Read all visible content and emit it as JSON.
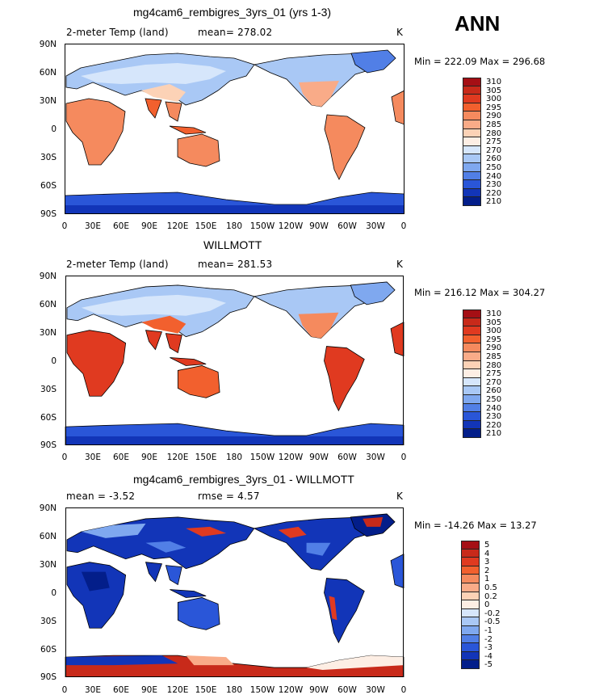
{
  "season": "ANN",
  "panels": [
    {
      "title": "mg4cam6_rembigres_3yrs_01 (yrs 1-3)",
      "left_label": "2-meter Temp (land)",
      "center_label": "mean= 278.02",
      "right_label": "K",
      "minmax": "Min = 222.09 Max = 296.68",
      "colorbar": {
        "levels": [
          "310",
          "305",
          "300",
          "295",
          "290",
          "285",
          "280",
          "275",
          "270",
          "260",
          "250",
          "240",
          "230",
          "220",
          "210"
        ],
        "colors": [
          "#a50f15",
          "#c82a1a",
          "#e03a20",
          "#f2602e",
          "#f58a5e",
          "#f9ab88",
          "#fcd2b6",
          "#fdeee4",
          "#d6e6fb",
          "#a9c8f5",
          "#7fa8ef",
          "#517fe6",
          "#2a56d8",
          "#1235b8",
          "#031e8a"
        ]
      }
    },
    {
      "title": "WILLMOTT",
      "left_label": "2-meter Temp (land)",
      "center_label": "mean= 281.53",
      "right_label": "K",
      "minmax": "Min = 216.12 Max = 304.27",
      "colorbar": {
        "levels": [
          "310",
          "305",
          "300",
          "295",
          "290",
          "285",
          "280",
          "275",
          "270",
          "260",
          "250",
          "240",
          "230",
          "220",
          "210"
        ],
        "colors": [
          "#a50f15",
          "#c82a1a",
          "#e03a20",
          "#f2602e",
          "#f58a5e",
          "#f9ab88",
          "#fcd2b6",
          "#fdeee4",
          "#d6e6fb",
          "#a9c8f5",
          "#7fa8ef",
          "#517fe6",
          "#2a56d8",
          "#1235b8",
          "#031e8a"
        ]
      }
    },
    {
      "title": "mg4cam6_rembigres_3yrs_01 - WILLMOTT",
      "left_label": "mean =   -3.52",
      "center_label": "rmse =    4.57",
      "right_label": "K",
      "minmax": "Min = -14.26 Max =  13.27",
      "colorbar": {
        "levels": [
          "5",
          "4",
          "3",
          "2",
          "1",
          "0.5",
          "0.2",
          "0",
          "-0.2",
          "-0.5",
          "-1",
          "-2",
          "-3",
          "-4",
          "-5"
        ],
        "colors": [
          "#a50f15",
          "#c82a1a",
          "#e03a20",
          "#f2602e",
          "#f58a5e",
          "#f9ab88",
          "#fcd2b6",
          "#fdeee4",
          "#d6e6fb",
          "#a9c8f5",
          "#7fa8ef",
          "#517fe6",
          "#2a56d8",
          "#1235b8",
          "#031e8a"
        ]
      }
    }
  ],
  "lat_labels": [
    "90N",
    "60N",
    "30N",
    "0",
    "30S",
    "60S",
    "90S"
  ],
  "lon_labels": [
    "0",
    "30E",
    "60E",
    "90E",
    "120E",
    "150E",
    "180",
    "150W",
    "120W",
    "90W",
    "60W",
    "30W",
    "0"
  ]
}
